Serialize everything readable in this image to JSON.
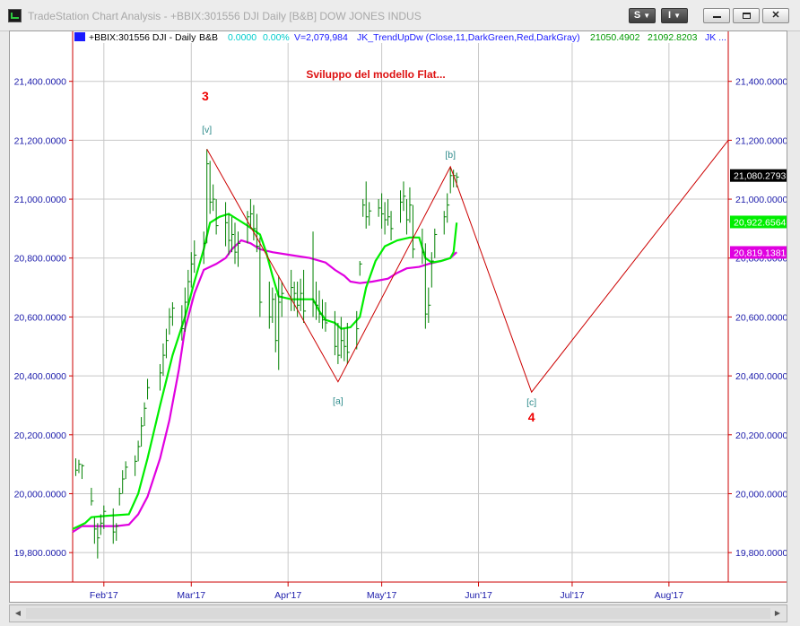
{
  "window": {
    "title": "TradeStation Chart Analysis - +BBIX:301556 DJI Daily [B&B] DOW JONES INDUS",
    "symbol_button": "S",
    "indicator_button": "I",
    "minimize_icon": "minimize-icon",
    "restore_icon": "restore-icon",
    "close_icon": "close-icon"
  },
  "colors": {
    "price_bars": "#008000",
    "zigzag": "#cc0000",
    "ma_fast": "#00ee00",
    "ma_slow": "#e000e0",
    "axis": "#cc0000",
    "grid": "#c8c8c8",
    "wave_label": "#2e8b8b",
    "degree_label": "#ee0000",
    "price_tag_bg": "#000000",
    "legend_cyan": "#00cccc",
    "legend_blue": "#1a1aff",
    "legend_green": "#009900"
  },
  "chart_data": {
    "type": "bar",
    "title": "Sviluppo del modello Flat...",
    "legend": {
      "symbol": "+BBIX:301556 DJI - Daily",
      "tag": "B&B",
      "change": "0.0000",
      "change_pct": "0.00%",
      "volume": "V=2,079,984",
      "indicator": "JK_TrendUpDw (Close,11,DarkGreen,Red,DarkGray)",
      "ind_value_1": "21050.4902",
      "ind_value_2": "21092.8203",
      "ind_more": "JK ..."
    },
    "x_labels": [
      "Feb'17",
      "Mar'17",
      "Apr'17",
      "May'17",
      "Jun'17",
      "Jul'17",
      "Aug'17"
    ],
    "x_label_days": [
      34,
      62,
      93,
      123,
      154,
      184,
      215
    ],
    "x_range_days": [
      24,
      234
    ],
    "y_ticks": [
      "19,800.0000",
      "20,000.0000",
      "20,200.0000",
      "20,400.0000",
      "20,600.0000",
      "20,800.0000",
      "21,000.0000",
      "21,200.0000",
      "21,400.0000"
    ],
    "y_tick_values": [
      19800,
      20000,
      20200,
      20400,
      20600,
      20800,
      21000,
      21200,
      21400
    ],
    "ylim": [
      19700,
      21530
    ],
    "grid": true,
    "price_tags": [
      {
        "label": "21,080.2793",
        "value": 21080.2793,
        "style": "black"
      },
      {
        "label": "20,922.6564",
        "value": 20922.6564,
        "style": "green"
      },
      {
        "label": "20,819.1381",
        "value": 20819.1381,
        "style": "magenta"
      }
    ],
    "ohlc": [
      {
        "d": 25,
        "h": 20120,
        "l": 20060,
        "c": 20080
      },
      {
        "d": 26,
        "h": 20115,
        "l": 20070,
        "c": 20100
      },
      {
        "d": 27,
        "h": 20100,
        "l": 20050,
        "c": 20095
      },
      {
        "d": 30,
        "h": 20020,
        "l": 19960,
        "c": 19975
      },
      {
        "d": 31,
        "h": 19920,
        "l": 19830,
        "c": 19880
      },
      {
        "d": 32,
        "h": 19900,
        "l": 19780,
        "c": 19850
      },
      {
        "d": 33,
        "h": 19930,
        "l": 19860,
        "c": 19900
      },
      {
        "d": 34,
        "h": 19960,
        "l": 19880,
        "c": 19940
      },
      {
        "d": 37,
        "h": 19950,
        "l": 19830,
        "c": 19870
      },
      {
        "d": 38,
        "h": 19900,
        "l": 19840,
        "c": 19890
      },
      {
        "d": 39,
        "h": 20020,
        "l": 19960,
        "c": 20000
      },
      {
        "d": 40,
        "h": 20080,
        "l": 20000,
        "c": 20050
      },
      {
        "d": 41,
        "h": 20110,
        "l": 20050,
        "c": 20090
      },
      {
        "d": 44,
        "h": 20130,
        "l": 20060,
        "c": 20110
      },
      {
        "d": 45,
        "h": 20180,
        "l": 20110,
        "c": 20160
      },
      {
        "d": 46,
        "h": 20260,
        "l": 20160,
        "c": 20230
      },
      {
        "d": 47,
        "h": 20310,
        "l": 20230,
        "c": 20290
      },
      {
        "d": 48,
        "h": 20390,
        "l": 20320,
        "c": 20360
      },
      {
        "d": 52,
        "h": 20440,
        "l": 20350,
        "c": 20410
      },
      {
        "d": 53,
        "h": 20510,
        "l": 20400,
        "c": 20470
      },
      {
        "d": 54,
        "h": 20560,
        "l": 20460,
        "c": 20520
      },
      {
        "d": 55,
        "h": 20630,
        "l": 20540,
        "c": 20600
      },
      {
        "d": 56,
        "h": 20650,
        "l": 20570,
        "c": 20630
      },
      {
        "d": 59,
        "h": 20640,
        "l": 20520,
        "c": 20560
      },
      {
        "d": 60,
        "h": 20700,
        "l": 20550,
        "c": 20650
      },
      {
        "d": 61,
        "h": 20760,
        "l": 20640,
        "c": 20720
      },
      {
        "d": 62,
        "h": 20820,
        "l": 20700,
        "c": 20780
      },
      {
        "d": 63,
        "h": 20860,
        "l": 20750,
        "c": 20810
      },
      {
        "d": 66,
        "h": 20890,
        "l": 20780,
        "c": 20850
      },
      {
        "d": 67,
        "h": 21170,
        "l": 20850,
        "c": 21120
      },
      {
        "d": 68,
        "h": 21130,
        "l": 20950,
        "c": 20990
      },
      {
        "d": 69,
        "h": 21050,
        "l": 20960,
        "c": 21000
      },
      {
        "d": 70,
        "h": 21000,
        "l": 20880,
        "c": 20910
      },
      {
        "d": 73,
        "h": 20990,
        "l": 20840,
        "c": 20920
      },
      {
        "d": 74,
        "h": 20950,
        "l": 20810,
        "c": 20860
      },
      {
        "d": 75,
        "h": 20940,
        "l": 20820,
        "c": 20880
      },
      {
        "d": 76,
        "h": 20920,
        "l": 20780,
        "c": 20820
      },
      {
        "d": 77,
        "h": 20890,
        "l": 20770,
        "c": 20850
      },
      {
        "d": 80,
        "h": 20960,
        "l": 20850,
        "c": 20940
      },
      {
        "d": 81,
        "h": 21000,
        "l": 20900,
        "c": 20950
      },
      {
        "d": 82,
        "h": 20980,
        "l": 20860,
        "c": 20900
      },
      {
        "d": 83,
        "h": 20950,
        "l": 20820,
        "c": 20840
      },
      {
        "d": 84,
        "h": 20870,
        "l": 20600,
        "c": 20650
      },
      {
        "d": 87,
        "h": 20720,
        "l": 20560,
        "c": 20600
      },
      {
        "d": 88,
        "h": 20700,
        "l": 20580,
        "c": 20660
      },
      {
        "d": 89,
        "h": 20680,
        "l": 20480,
        "c": 20520
      },
      {
        "d": 90,
        "h": 20740,
        "l": 20420,
        "c": 20650
      },
      {
        "d": 91,
        "h": 20720,
        "l": 20600,
        "c": 20680
      },
      {
        "d": 94,
        "h": 20760,
        "l": 20620,
        "c": 20700
      },
      {
        "d": 95,
        "h": 20720,
        "l": 20620,
        "c": 20680
      },
      {
        "d": 96,
        "h": 20720,
        "l": 20600,
        "c": 20640
      },
      {
        "d": 97,
        "h": 20730,
        "l": 20620,
        "c": 20680
      },
      {
        "d": 98,
        "h": 20760,
        "l": 20580,
        "c": 20620
      },
      {
        "d": 101,
        "h": 20890,
        "l": 20600,
        "c": 20650
      },
      {
        "d": 102,
        "h": 20720,
        "l": 20590,
        "c": 20640
      },
      {
        "d": 103,
        "h": 20690,
        "l": 20580,
        "c": 20610
      },
      {
        "d": 104,
        "h": 20660,
        "l": 20560,
        "c": 20590
      },
      {
        "d": 105,
        "h": 20650,
        "l": 20550,
        "c": 20580
      },
      {
        "d": 108,
        "h": 20620,
        "l": 20470,
        "c": 20500
      },
      {
        "d": 109,
        "h": 20580,
        "l": 20440,
        "c": 20470
      },
      {
        "d": 110,
        "h": 20600,
        "l": 20460,
        "c": 20520
      },
      {
        "d": 111,
        "h": 20560,
        "l": 20450,
        "c": 20500
      },
      {
        "d": 112,
        "h": 20580,
        "l": 20440,
        "c": 20480
      },
      {
        "d": 115,
        "h": 20620,
        "l": 20490,
        "c": 20560
      },
      {
        "d": 116,
        "h": 20790,
        "l": 20740,
        "c": 20780
      },
      {
        "d": 117,
        "h": 21000,
        "l": 20940,
        "c": 20980
      },
      {
        "d": 118,
        "h": 21060,
        "l": 20900,
        "c": 20940
      },
      {
        "d": 119,
        "h": 20990,
        "l": 20910,
        "c": 20960
      },
      {
        "d": 122,
        "h": 21000,
        "l": 20940,
        "c": 20970
      },
      {
        "d": 123,
        "h": 21020,
        "l": 20900,
        "c": 20950
      },
      {
        "d": 124,
        "h": 20990,
        "l": 20880,
        "c": 20930
      },
      {
        "d": 125,
        "h": 21000,
        "l": 20910,
        "c": 20940
      },
      {
        "d": 126,
        "h": 20960,
        "l": 20860,
        "c": 20900
      },
      {
        "d": 129,
        "h": 21030,
        "l": 20920,
        "c": 20990
      },
      {
        "d": 130,
        "h": 21060,
        "l": 20960,
        "c": 21010
      },
      {
        "d": 131,
        "h": 21000,
        "l": 20880,
        "c": 20930
      },
      {
        "d": 132,
        "h": 21040,
        "l": 20920,
        "c": 20980
      },
      {
        "d": 133,
        "h": 20980,
        "l": 20800,
        "c": 20830
      },
      {
        "d": 136,
        "h": 20900,
        "l": 20780,
        "c": 20820
      },
      {
        "d": 137,
        "h": 20850,
        "l": 20560,
        "c": 20610
      },
      {
        "d": 138,
        "h": 20700,
        "l": 20580,
        "c": 20640
      },
      {
        "d": 139,
        "h": 20820,
        "l": 20700,
        "c": 20790
      },
      {
        "d": 140,
        "h": 20900,
        "l": 20800,
        "c": 20880
      },
      {
        "d": 143,
        "h": 20960,
        "l": 20880,
        "c": 20940
      },
      {
        "d": 144,
        "h": 21020,
        "l": 20920,
        "c": 20980
      },
      {
        "d": 145,
        "h": 21110,
        "l": 21020,
        "c": 21080
      },
      {
        "d": 146,
        "h": 21100,
        "l": 21040,
        "c": 21080
      },
      {
        "d": 147,
        "h": 21090,
        "l": 21040,
        "c": 21075
      }
    ],
    "ma_fast": [
      {
        "d": 24,
        "v": 19880
      },
      {
        "d": 28,
        "v": 19900
      },
      {
        "d": 30,
        "v": 19920
      },
      {
        "d": 35,
        "v": 19925
      },
      {
        "d": 42,
        "v": 19930
      },
      {
        "d": 45,
        "v": 20000
      },
      {
        "d": 48,
        "v": 20120
      },
      {
        "d": 52,
        "v": 20300
      },
      {
        "d": 56,
        "v": 20470
      },
      {
        "d": 60,
        "v": 20600
      },
      {
        "d": 63,
        "v": 20720
      },
      {
        "d": 66,
        "v": 20830
      },
      {
        "d": 68,
        "v": 20920
      },
      {
        "d": 71,
        "v": 20940
      },
      {
        "d": 74,
        "v": 20950
      },
      {
        "d": 77,
        "v": 20930
      },
      {
        "d": 80,
        "v": 20910
      },
      {
        "d": 84,
        "v": 20880
      },
      {
        "d": 86,
        "v": 20820
      },
      {
        "d": 88,
        "v": 20740
      },
      {
        "d": 90,
        "v": 20670
      },
      {
        "d": 94,
        "v": 20660
      },
      {
        "d": 98,
        "v": 20660
      },
      {
        "d": 101,
        "v": 20660
      },
      {
        "d": 103,
        "v": 20620
      },
      {
        "d": 105,
        "v": 20590
      },
      {
        "d": 108,
        "v": 20580
      },
      {
        "d": 110,
        "v": 20560
      },
      {
        "d": 113,
        "v": 20565
      },
      {
        "d": 116,
        "v": 20600
      },
      {
        "d": 118,
        "v": 20700
      },
      {
        "d": 121,
        "v": 20790
      },
      {
        "d": 124,
        "v": 20840
      },
      {
        "d": 128,
        "v": 20860
      },
      {
        "d": 132,
        "v": 20870
      },
      {
        "d": 135,
        "v": 20870
      },
      {
        "d": 137,
        "v": 20800
      },
      {
        "d": 139,
        "v": 20785
      },
      {
        "d": 142,
        "v": 20790
      },
      {
        "d": 145,
        "v": 20800
      },
      {
        "d": 146,
        "v": 20820
      },
      {
        "d": 147,
        "v": 20920
      }
    ],
    "ma_slow": [
      {
        "d": 24,
        "v": 19870
      },
      {
        "d": 27,
        "v": 19890
      },
      {
        "d": 33,
        "v": 19890
      },
      {
        "d": 38,
        "v": 19890
      },
      {
        "d": 42,
        "v": 19895
      },
      {
        "d": 45,
        "v": 19930
      },
      {
        "d": 48,
        "v": 19990
      },
      {
        "d": 52,
        "v": 20120
      },
      {
        "d": 55,
        "v": 20250
      },
      {
        "d": 58,
        "v": 20420
      },
      {
        "d": 60,
        "v": 20560
      },
      {
        "d": 63,
        "v": 20680
      },
      {
        "d": 66,
        "v": 20760
      },
      {
        "d": 70,
        "v": 20780
      },
      {
        "d": 73,
        "v": 20800
      },
      {
        "d": 75,
        "v": 20830
      },
      {
        "d": 78,
        "v": 20860
      },
      {
        "d": 81,
        "v": 20850
      },
      {
        "d": 84,
        "v": 20830
      },
      {
        "d": 88,
        "v": 20820
      },
      {
        "d": 94,
        "v": 20810
      },
      {
        "d": 100,
        "v": 20800
      },
      {
        "d": 105,
        "v": 20785
      },
      {
        "d": 108,
        "v": 20760
      },
      {
        "d": 111,
        "v": 20740
      },
      {
        "d": 113,
        "v": 20720
      },
      {
        "d": 116,
        "v": 20715
      },
      {
        "d": 120,
        "v": 20720
      },
      {
        "d": 125,
        "v": 20730
      },
      {
        "d": 128,
        "v": 20750
      },
      {
        "d": 131,
        "v": 20765
      },
      {
        "d": 135,
        "v": 20770
      },
      {
        "d": 138,
        "v": 20780
      },
      {
        "d": 142,
        "v": 20790
      },
      {
        "d": 145,
        "v": 20800
      },
      {
        "d": 147,
        "v": 20820
      }
    ],
    "zigzag": [
      {
        "d": 67,
        "v": 21170
      },
      {
        "d": 109,
        "v": 20380
      },
      {
        "d": 145,
        "v": 21110
      },
      {
        "d": 171,
        "v": 20345
      },
      {
        "d": 234,
        "v": 21200
      }
    ],
    "annotations": [
      {
        "text": "3",
        "d": 66.5,
        "v": 21335,
        "kind": "degree"
      },
      {
        "text": "[v]",
        "d": 67,
        "v": 21225,
        "kind": "wave"
      },
      {
        "text": "[a]",
        "d": 109,
        "v": 20305,
        "kind": "wave"
      },
      {
        "text": "[b]",
        "d": 145,
        "v": 21140,
        "kind": "wave"
      },
      {
        "text": "[c]",
        "d": 171,
        "v": 20300,
        "kind": "wave"
      },
      {
        "text": "4",
        "d": 171,
        "v": 20245,
        "kind": "degree"
      }
    ]
  }
}
